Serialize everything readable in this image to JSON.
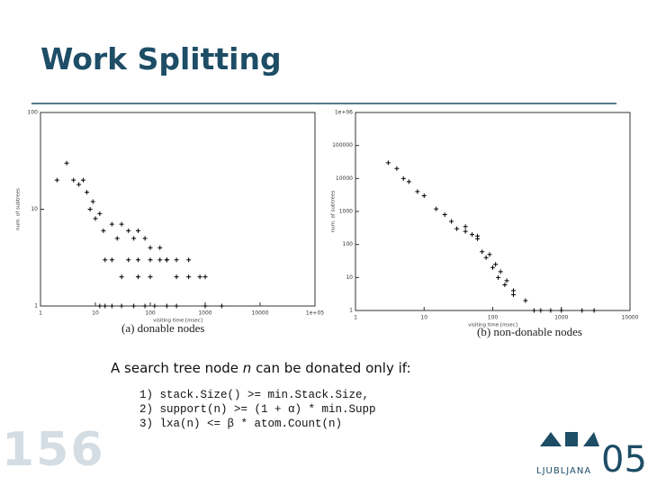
{
  "header": {
    "title": "Work Splitting"
  },
  "charts": [
    {
      "type": "scatter",
      "xlabel": "visiting time [msec]",
      "ylabel": "num. of subtrees",
      "caption": "(a)  donable nodes",
      "xscale": "log",
      "yscale": "log",
      "xlim": [
        1,
        100000
      ],
      "ylim": [
        1,
        100
      ],
      "xticks": [
        1,
        10,
        100,
        1000,
        10000,
        {
          "value": 100000,
          "label": "1e+05"
        }
      ],
      "yticks": [
        1,
        10,
        100
      ],
      "x": [
        2,
        3,
        4,
        5,
        6,
        7,
        8,
        9,
        10,
        12,
        14,
        20,
        25,
        30,
        40,
        50,
        60,
        80,
        100,
        150,
        200,
        300,
        500,
        800,
        1000,
        12,
        15,
        20,
        30,
        50,
        80,
        120,
        200,
        300,
        15,
        20,
        40,
        60,
        100,
        150,
        200,
        30,
        60,
        100,
        300,
        500,
        1000,
        2000
      ],
      "y": [
        20,
        30,
        20,
        18,
        20,
        15,
        10,
        12,
        8,
        9,
        6,
        7,
        5,
        7,
        6,
        5,
        6,
        5,
        4,
        4,
        3,
        3,
        3,
        2,
        2,
        1,
        1,
        1,
        1,
        1,
        1,
        1,
        1,
        1,
        3,
        3,
        3,
        3,
        3,
        3,
        3,
        2,
        2,
        2,
        2,
        2,
        1,
        1
      ]
    },
    {
      "type": "scatter",
      "xlabel": "visiting time [msec]",
      "ylabel": "num. of subtrees",
      "caption": "(b)  non-donable nodes",
      "xscale": "log",
      "yscale": "log",
      "xlim": [
        1,
        10000
      ],
      "ylim": [
        1,
        1000000
      ],
      "xticks": [
        1,
        10,
        100,
        1000,
        10000
      ],
      "yticks": [
        1,
        10,
        100,
        1000,
        10000,
        100000,
        {
          "value": 1000000,
          "label": "1e+06"
        }
      ],
      "x": [
        3,
        4,
        5,
        6,
        8,
        10,
        15,
        20,
        25,
        30,
        40,
        50,
        60,
        70,
        80,
        100,
        120,
        150,
        200,
        300,
        500,
        1000,
        2000,
        3000,
        40,
        60,
        90,
        110,
        130,
        160,
        200,
        400,
        700
      ],
      "y": [
        30000,
        20000,
        10000,
        8000,
        4000,
        3000,
        1200,
        800,
        500,
        300,
        250,
        200,
        150,
        60,
        40,
        20,
        10,
        6,
        4,
        2,
        1,
        1,
        1,
        1,
        350,
        180,
        50,
        25,
        15,
        8,
        3,
        1,
        1
      ]
    }
  ],
  "body": {
    "lead": [
      "A search tree node ",
      "n",
      " can be donated only if:"
    ],
    "conditions": [
      "1) stack.Size() >= min.Stack.Size,",
      "2) support(n) >= (1 + α) * min.Supp",
      "3) lxa(n) <= β * atom.Count(n)"
    ]
  },
  "footer": {
    "slide_number": "156",
    "logo_text": "LJUBLJANA",
    "logo_year": "05"
  }
}
